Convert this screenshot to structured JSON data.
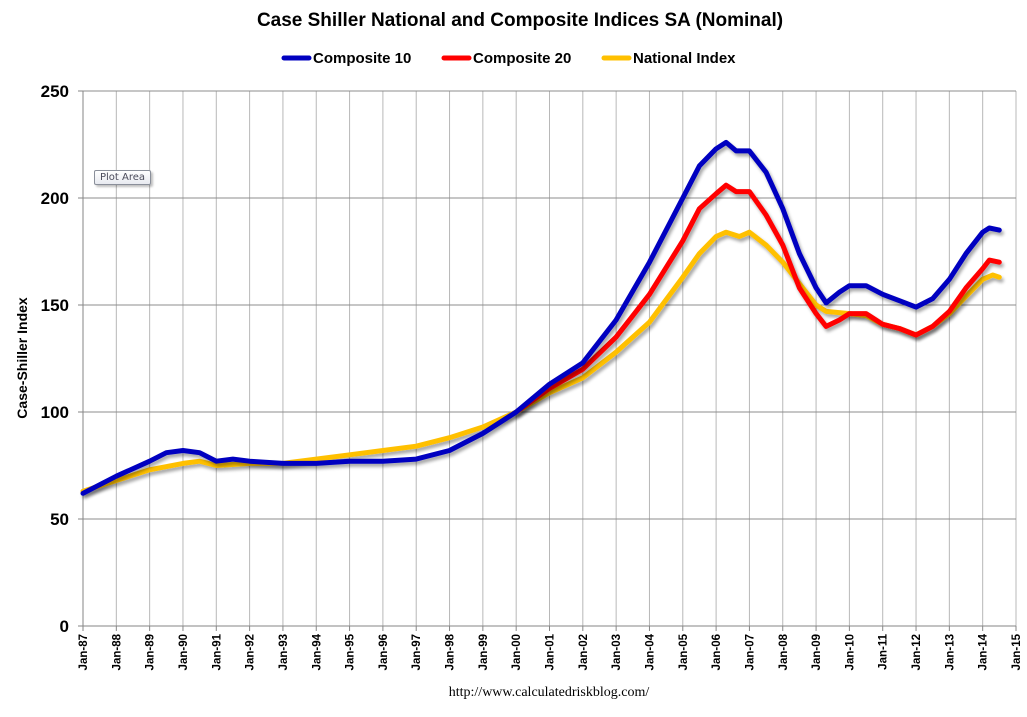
{
  "tooltip": {
    "label": "Plot Area"
  },
  "chart_data": {
    "type": "line",
    "title": "Case Shiller National and Composite Indices SA (Nominal)",
    "xlabel": "",
    "ylabel": "Case-Shiller Index",
    "source": "http://www.calculatedriskblog.com/",
    "ylim": [
      0,
      250
    ],
    "yticks": [
      0,
      50,
      100,
      150,
      200,
      250
    ],
    "xlim": [
      1987,
      2015
    ],
    "xticks": [
      {
        "x": 1987,
        "label": "Jan-87"
      },
      {
        "x": 1988,
        "label": "Jan-88"
      },
      {
        "x": 1989,
        "label": "Jan-89"
      },
      {
        "x": 1990,
        "label": "Jan-90"
      },
      {
        "x": 1991,
        "label": "Jan-91"
      },
      {
        "x": 1992,
        "label": "Jan-92"
      },
      {
        "x": 1993,
        "label": "Jan-93"
      },
      {
        "x": 1994,
        "label": "Jan-94"
      },
      {
        "x": 1995,
        "label": "Jan-95"
      },
      {
        "x": 1996,
        "label": "Jan-96"
      },
      {
        "x": 1997,
        "label": "Jan-97"
      },
      {
        "x": 1998,
        "label": "Jan-98"
      },
      {
        "x": 1999,
        "label": "Jan-99"
      },
      {
        "x": 2000,
        "label": "Jan-00"
      },
      {
        "x": 2001,
        "label": "Jan-01"
      },
      {
        "x": 2002,
        "label": "Jan-02"
      },
      {
        "x": 2003,
        "label": "Jan-03"
      },
      {
        "x": 2004,
        "label": "Jan-04"
      },
      {
        "x": 2005,
        "label": "Jan-05"
      },
      {
        "x": 2006,
        "label": "Jan-06"
      },
      {
        "x": 2007,
        "label": "Jan-07"
      },
      {
        "x": 2008,
        "label": "Jan-08"
      },
      {
        "x": 2009,
        "label": "Jan-09"
      },
      {
        "x": 2010,
        "label": "Jan-10"
      },
      {
        "x": 2011,
        "label": "Jan-11"
      },
      {
        "x": 2012,
        "label": "Jan-12"
      },
      {
        "x": 2013,
        "label": "Jan-13"
      },
      {
        "x": 2014,
        "label": "Jan-14"
      },
      {
        "x": 2015,
        "label": "Jan-15"
      }
    ],
    "grid": true,
    "legend_position": "top-center",
    "series": [
      {
        "name": "National Index",
        "color": "#ffc000",
        "x": [
          1987,
          1988,
          1989,
          1990,
          1990.5,
          1991,
          1992,
          1993,
          1994,
          1995,
          1996,
          1997,
          1998,
          1999,
          2000,
          2001,
          2002,
          2003,
          2004,
          2005,
          2005.5,
          2006,
          2006.3,
          2006.7,
          2007,
          2007.5,
          2008,
          2008.5,
          2009,
          2009.3,
          2010,
          2010.5,
          2011,
          2011.5,
          2012,
          2012.5,
          2013,
          2013.5,
          2014,
          2014.3,
          2014.5
        ],
        "values": [
          63,
          68,
          73,
          76,
          77,
          75,
          76,
          76,
          78,
          80,
          82,
          84,
          88,
          93,
          100,
          109,
          116,
          128,
          142,
          163,
          174,
          182,
          184,
          182,
          184,
          178,
          170,
          160,
          150,
          147,
          146,
          145,
          141,
          139,
          136,
          140,
          146,
          154,
          162,
          164,
          163
        ]
      },
      {
        "name": "Composite 20",
        "color": "#ff0000",
        "x": [
          2000,
          2001,
          2002,
          2003,
          2004,
          2005,
          2005.5,
          2006,
          2006.3,
          2006.6,
          2007,
          2007.5,
          2008,
          2008.5,
          2009,
          2009.3,
          2009.7,
          2010,
          2010.5,
          2011,
          2011.5,
          2012,
          2012.5,
          2013,
          2013.5,
          2014,
          2014.2,
          2014.5
        ],
        "values": [
          100,
          111,
          120,
          135,
          155,
          180,
          195,
          202,
          206,
          203,
          203,
          192,
          178,
          158,
          146,
          140,
          143,
          146,
          146,
          141,
          139,
          136,
          140,
          147,
          158,
          167,
          171,
          170
        ]
      },
      {
        "name": "Composite 10",
        "color": "#0000c0",
        "x": [
          1987,
          1988,
          1989,
          1989.5,
          1990,
          1990.5,
          1991,
          1991.5,
          1992,
          1993,
          1994,
          1995,
          1996,
          1997,
          1998,
          1999,
          2000,
          2001,
          2002,
          2003,
          2004,
          2005,
          2005.5,
          2006,
          2006.3,
          2006.6,
          2007,
          2007.5,
          2008,
          2008.5,
          2009,
          2009.3,
          2009.7,
          2010,
          2010.5,
          2011,
          2011.5,
          2012,
          2012.5,
          2013,
          2013.5,
          2014,
          2014.2,
          2014.5
        ],
        "values": [
          62,
          70,
          77,
          81,
          82,
          81,
          77,
          78,
          77,
          76,
          76,
          77,
          77,
          78,
          82,
          90,
          100,
          113,
          123,
          143,
          170,
          200,
          215,
          223,
          226,
          222,
          222,
          212,
          195,
          174,
          158,
          151,
          156,
          159,
          159,
          155,
          152,
          149,
          153,
          162,
          174,
          184,
          186,
          185
        ]
      }
    ],
    "legend": [
      {
        "name": "Composite 10",
        "color": "#0000c0"
      },
      {
        "name": "Composite 20",
        "color": "#ff0000"
      },
      {
        "name": "National Index",
        "color": "#ffc000"
      }
    ]
  }
}
